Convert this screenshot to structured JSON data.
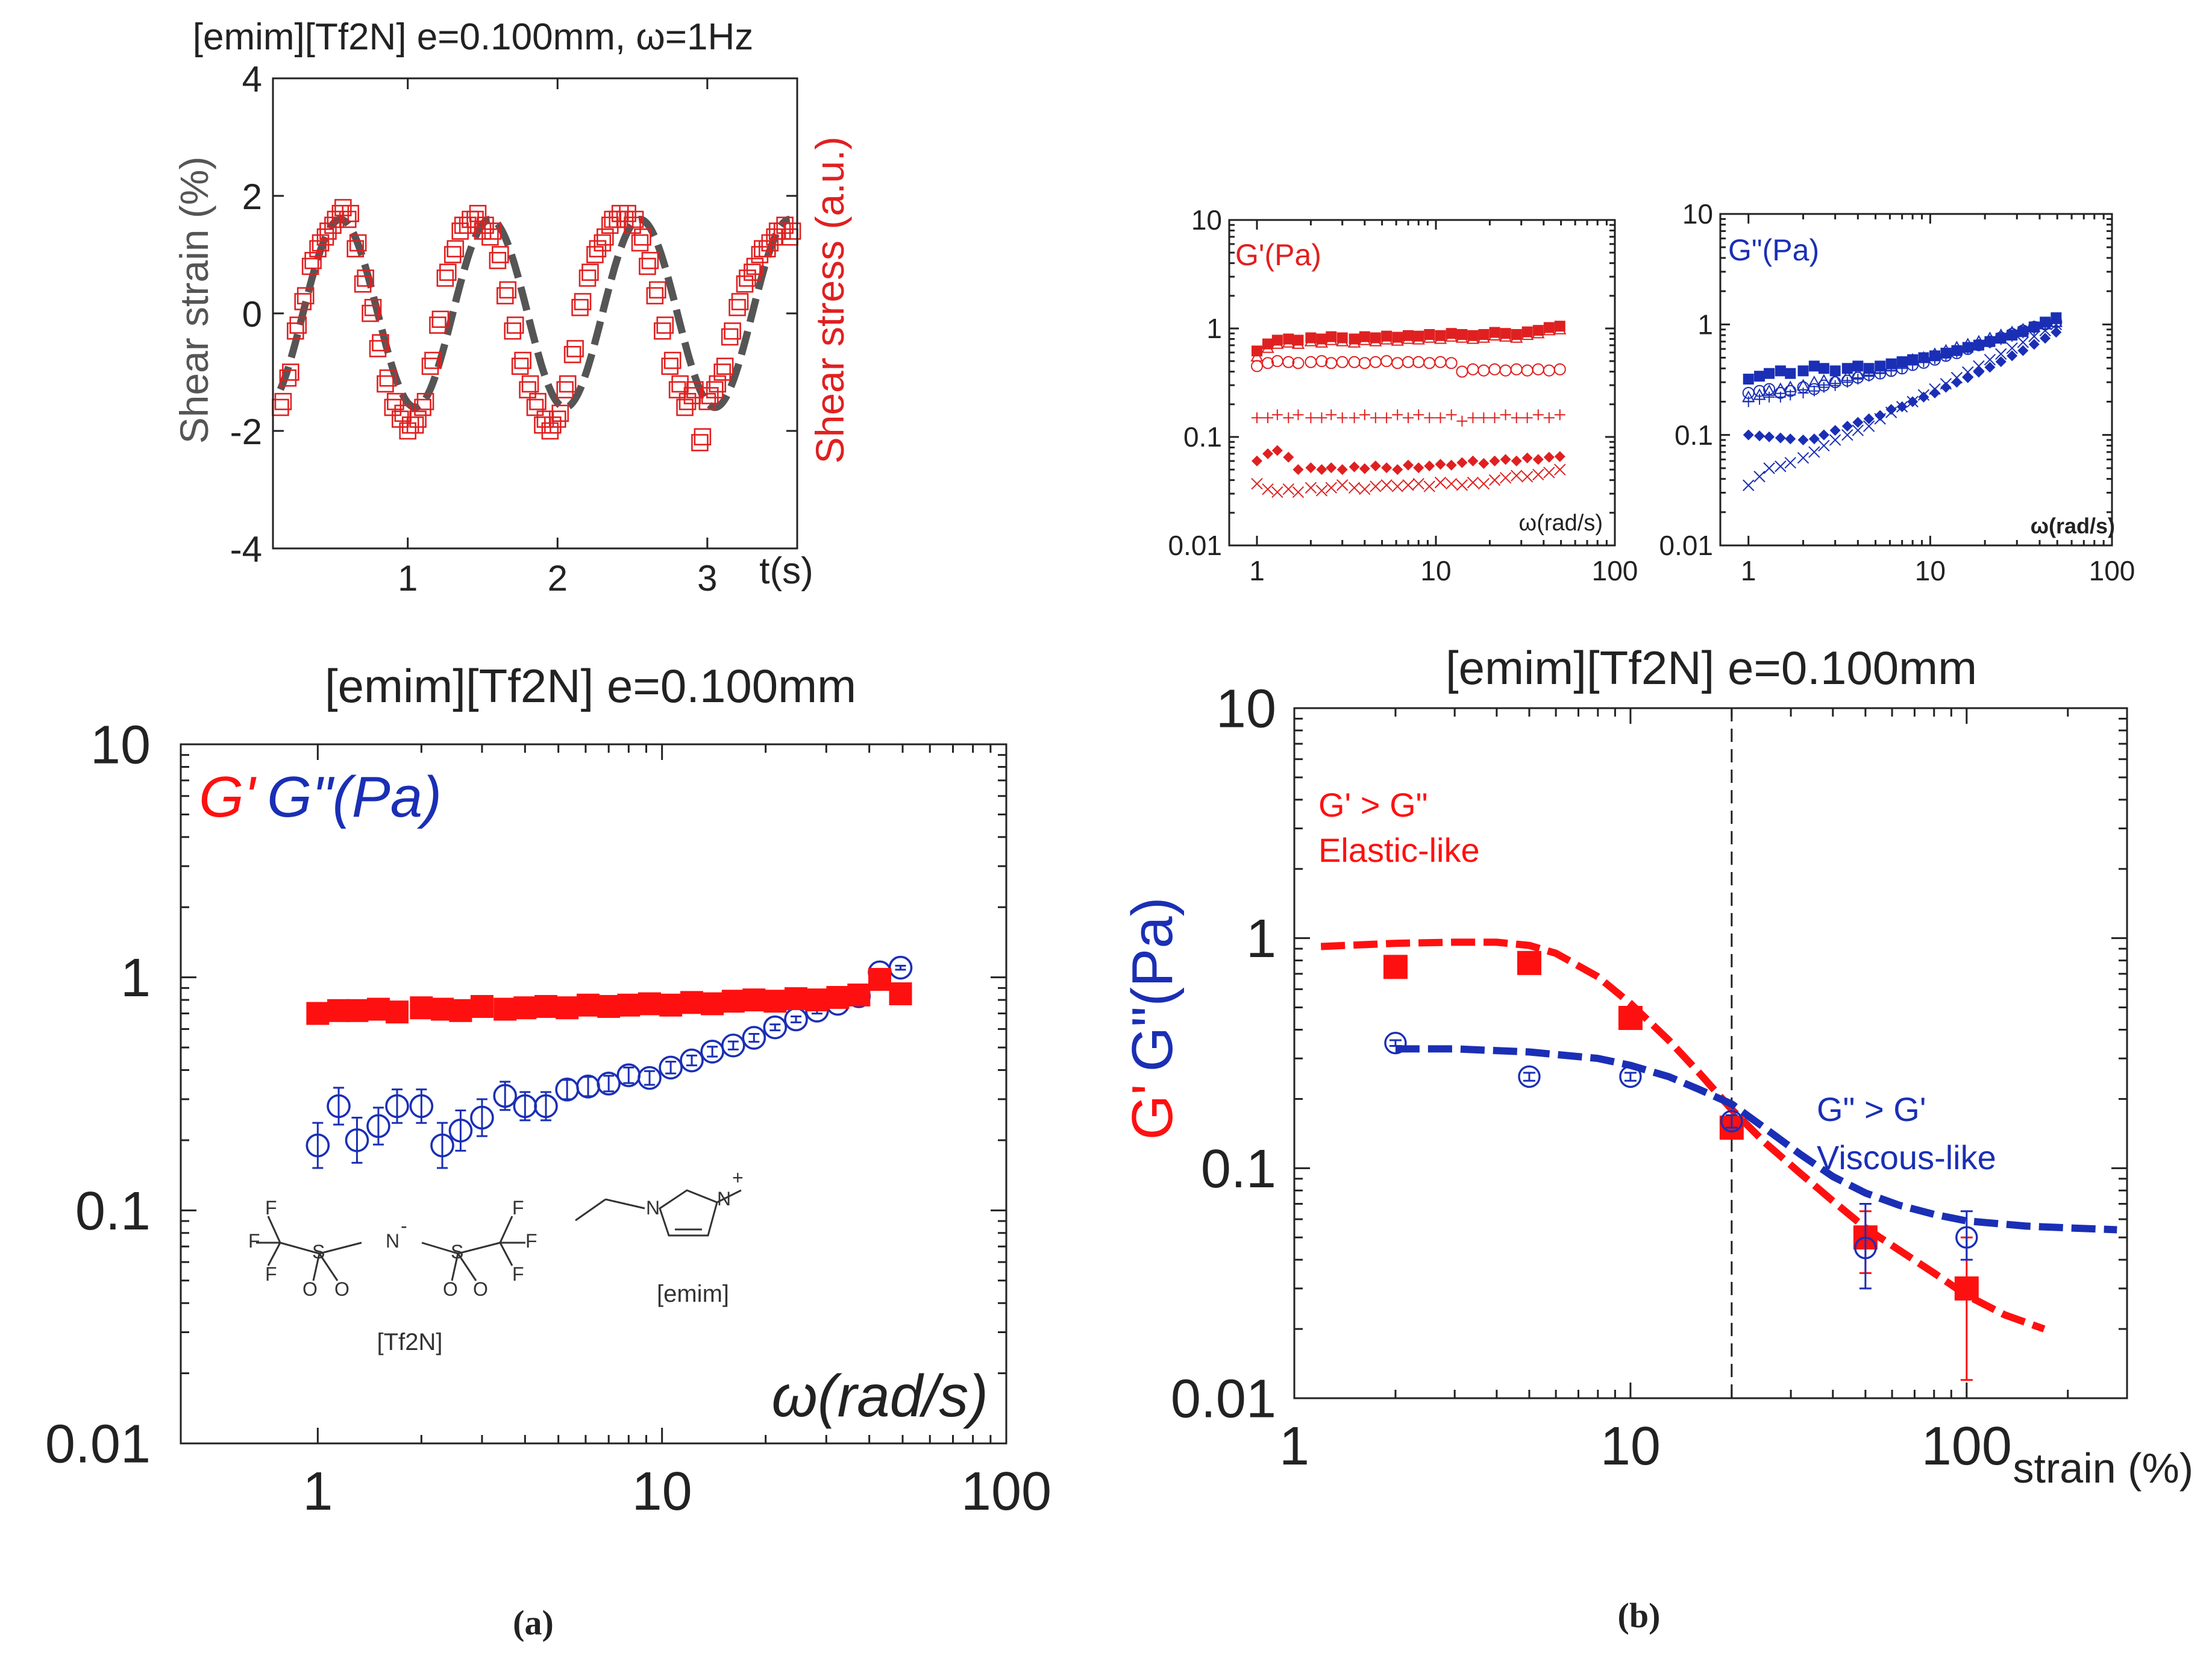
{
  "panel_labels": {
    "a": "(a)",
    "b": "(b)"
  },
  "chart_data": [
    {
      "id": "strain-stress-time",
      "type": "line",
      "title": "[emim][Tf2N] e=0.100mm, ω=1Hz",
      "xlabel": "t(s)",
      "ylabel": "Shear strain (%)",
      "ylabel_right": "Shear stress (a.u.)",
      "xlim": [
        0.1,
        3.6
      ],
      "ylim": [
        -4,
        4
      ],
      "xticks": [
        "1",
        "2",
        "3"
      ],
      "yticks": [
        "4",
        "2",
        "0",
        "-2",
        "-4"
      ],
      "colors": {
        "strain": "#555555",
        "stress": "#e02020"
      },
      "strain_fit": {
        "amplitude": 1.6,
        "period": 1.0,
        "phase_peak": 0.55
      },
      "stress": {
        "x": [
          0.15,
          0.2,
          0.25,
          0.3,
          0.35,
          0.4,
          0.45,
          0.5,
          0.55,
          0.6,
          0.65,
          0.7,
          0.75,
          0.8,
          0.85,
          0.9,
          0.95,
          1.0,
          1.05,
          1.1,
          1.15,
          1.2,
          1.25,
          1.3,
          1.35,
          1.4,
          1.45,
          1.5,
          1.55,
          1.6,
          1.65,
          1.7,
          1.75,
          1.8,
          1.85,
          1.9,
          1.95,
          2.0,
          2.05,
          2.1,
          2.15,
          2.2,
          2.25,
          2.3,
          2.35,
          2.4,
          2.45,
          2.5,
          2.55,
          2.6,
          2.65,
          2.7,
          2.75,
          2.8,
          2.85,
          2.9,
          2.95,
          3.0,
          3.05,
          3.1,
          3.15,
          3.2,
          3.25,
          3.3,
          3.35,
          3.4,
          3.45,
          3.5,
          3.55
        ],
        "y": [
          -1.6,
          -1.1,
          -0.3,
          0.2,
          0.8,
          1.1,
          1.3,
          1.5,
          1.7,
          1.6,
          1.1,
          0.5,
          0.0,
          -0.6,
          -1.2,
          -1.6,
          -1.8,
          -2.0,
          -1.9,
          -1.6,
          -0.9,
          -0.2,
          0.6,
          1.0,
          1.4,
          1.5,
          1.6,
          1.4,
          1.3,
          0.9,
          0.3,
          -0.3,
          -0.9,
          -1.3,
          -1.6,
          -1.9,
          -2.0,
          -1.8,
          -1.3,
          -0.7,
          0.1,
          0.6,
          1.0,
          1.2,
          1.5,
          1.6,
          1.6,
          1.5,
          1.2,
          0.8,
          0.3,
          -0.3,
          -0.9,
          -1.3,
          -1.6,
          -1.4,
          -2.2,
          -1.5,
          -1.3,
          -1.0,
          -0.4,
          0.1,
          0.5,
          0.7,
          1.0,
          1.1,
          1.3,
          1.4,
          1.3
        ]
      }
    },
    {
      "id": "gprime-insets",
      "type": "scatter",
      "title": "G'(Pa)",
      "xlabel": "ω(rad/s)",
      "xscale": "log",
      "yscale": "log",
      "xlim": [
        0.7,
        100
      ],
      "ylim": [
        0.01,
        10
      ],
      "xticks": [
        "1",
        "10",
        "100"
      ],
      "yticks": [
        "10",
        "1",
        "0.1",
        "0.01"
      ],
      "x": [
        1.0,
        1.15,
        1.3,
        1.5,
        1.7,
        2.0,
        2.3,
        2.6,
        3.0,
        3.5,
        4.0,
        4.6,
        5.3,
        6.1,
        7.0,
        8.0,
        9.2,
        10.6,
        12.2,
        14.0,
        16.1,
        18.5,
        21.3,
        24.5,
        28.2,
        32.4,
        37.3,
        42.9,
        49.3
      ],
      "series": [
        {
          "name": "filled-square",
          "marker": "filled-square",
          "color": "#e02020",
          "values": [
            0.62,
            0.72,
            0.78,
            0.8,
            0.78,
            0.82,
            0.8,
            0.84,
            0.82,
            0.8,
            0.84,
            0.82,
            0.85,
            0.83,
            0.86,
            0.85,
            0.88,
            0.86,
            0.9,
            0.88,
            0.86,
            0.88,
            0.92,
            0.9,
            0.88,
            0.93,
            0.96,
            1.02,
            1.05
          ]
        },
        {
          "name": "open-triangle",
          "marker": "open-triangle",
          "color": "#e02020",
          "values": [
            0.55,
            0.66,
            0.72,
            0.74,
            0.72,
            0.76,
            0.74,
            0.78,
            0.76,
            0.74,
            0.78,
            0.76,
            0.79,
            0.77,
            0.8,
            0.79,
            0.82,
            0.8,
            0.84,
            0.82,
            0.8,
            0.82,
            0.86,
            0.84,
            0.82,
            0.87,
            0.9,
            0.96,
            0.98
          ]
        },
        {
          "name": "open-circle",
          "marker": "open-circle",
          "color": "#e02020",
          "values": [
            0.45,
            0.48,
            0.5,
            0.49,
            0.48,
            0.49,
            0.5,
            0.48,
            0.49,
            0.49,
            0.48,
            0.49,
            0.5,
            0.48,
            0.49,
            0.49,
            0.48,
            0.49,
            0.48,
            0.4,
            0.42,
            0.41,
            0.42,
            0.41,
            0.42,
            0.41,
            0.42,
            0.41,
            0.42
          ]
        },
        {
          "name": "plus",
          "marker": "plus",
          "color": "#e02020",
          "values": [
            0.15,
            0.15,
            0.16,
            0.15,
            0.16,
            0.15,
            0.15,
            0.16,
            0.15,
            0.15,
            0.16,
            0.15,
            0.15,
            0.16,
            0.15,
            0.16,
            0.15,
            0.15,
            0.16,
            0.14,
            0.15,
            0.15,
            0.15,
            0.16,
            0.15,
            0.15,
            0.16,
            0.15,
            0.16
          ]
        },
        {
          "name": "filled-diamond",
          "marker": "filled-diamond",
          "color": "#e02020",
          "values": [
            0.06,
            0.07,
            0.075,
            0.065,
            0.05,
            0.052,
            0.05,
            0.052,
            0.05,
            0.053,
            0.051,
            0.054,
            0.052,
            0.05,
            0.055,
            0.052,
            0.054,
            0.056,
            0.055,
            0.058,
            0.06,
            0.057,
            0.06,
            0.062,
            0.06,
            0.064,
            0.062,
            0.065,
            0.066
          ]
        },
        {
          "name": "cross",
          "marker": "cross",
          "color": "#e02020",
          "values": [
            0.037,
            0.033,
            0.031,
            0.033,
            0.031,
            0.034,
            0.032,
            0.034,
            0.036,
            0.034,
            0.033,
            0.035,
            0.036,
            0.035,
            0.036,
            0.037,
            0.035,
            0.038,
            0.037,
            0.036,
            0.038,
            0.037,
            0.04,
            0.042,
            0.044,
            0.043,
            0.045,
            0.047,
            0.05
          ]
        }
      ]
    },
    {
      "id": "gdoubleprime-insets",
      "type": "scatter",
      "title": "G\"(Pa)",
      "xlabel": "ω(rad/s)",
      "xscale": "log",
      "yscale": "log",
      "xlim": [
        0.7,
        100
      ],
      "ylim": [
        0.01,
        10
      ],
      "xticks": [
        "1",
        "10",
        "100"
      ],
      "yticks": [
        "10",
        "1",
        "0.1",
        "0.01"
      ],
      "x": [
        1.0,
        1.15,
        1.3,
        1.5,
        1.7,
        2.0,
        2.3,
        2.6,
        3.0,
        3.5,
        4.0,
        4.6,
        5.3,
        6.1,
        7.0,
        8.0,
        9.2,
        10.6,
        12.2,
        14.0,
        16.1,
        18.5,
        21.3,
        24.5,
        28.2,
        32.4,
        37.3,
        42.9,
        49.3
      ],
      "series": [
        {
          "name": "filled-square",
          "marker": "filled-square",
          "color": "#1a2fb5",
          "values": [
            0.32,
            0.34,
            0.36,
            0.38,
            0.36,
            0.38,
            0.42,
            0.4,
            0.38,
            0.4,
            0.42,
            0.4,
            0.42,
            0.44,
            0.46,
            0.48,
            0.5,
            0.52,
            0.55,
            0.58,
            0.62,
            0.65,
            0.7,
            0.75,
            0.8,
            0.86,
            0.95,
            1.05,
            1.15
          ]
        },
        {
          "name": "open-circle",
          "marker": "open-circle",
          "color": "#1a2fb5",
          "values": [
            0.24,
            0.25,
            0.26,
            0.24,
            0.25,
            0.27,
            0.26,
            0.28,
            0.3,
            0.31,
            0.33,
            0.35,
            0.36,
            0.38,
            0.4,
            0.43,
            0.45,
            0.48,
            0.52,
            0.55,
            0.6,
            0.65,
            0.7,
            0.76,
            0.82,
            0.88,
            0.95,
            1.0,
            1.05
          ]
        },
        {
          "name": "open-triangle",
          "marker": "open-triangle",
          "color": "#1a2fb5",
          "values": [
            0.22,
            0.23,
            0.25,
            0.26,
            0.27,
            0.28,
            0.3,
            0.31,
            0.32,
            0.34,
            0.36,
            0.38,
            0.4,
            0.42,
            0.45,
            0.48,
            0.5,
            0.54,
            0.58,
            0.62,
            0.66,
            0.7,
            0.75,
            0.8,
            0.85,
            0.9,
            0.95,
            1.0,
            1.05
          ]
        },
        {
          "name": "plus",
          "marker": "plus",
          "color": "#1a2fb5",
          "values": [
            0.2,
            0.21,
            0.22,
            0.22,
            0.23,
            0.24,
            0.25,
            0.27,
            0.28,
            0.3,
            0.32,
            0.34,
            0.36,
            0.38,
            0.4,
            0.43,
            0.46,
            0.49,
            0.52,
            0.56,
            0.6,
            0.64,
            0.68,
            0.73,
            0.78,
            0.84,
            0.9,
            0.96,
            1.02
          ]
        },
        {
          "name": "filled-diamond",
          "marker": "filled-diamond",
          "color": "#1a2fb5",
          "values": [
            0.1,
            0.098,
            0.096,
            0.094,
            0.092,
            0.09,
            0.092,
            0.1,
            0.11,
            0.12,
            0.13,
            0.14,
            0.15,
            0.17,
            0.18,
            0.2,
            0.22,
            0.24,
            0.27,
            0.3,
            0.33,
            0.37,
            0.41,
            0.46,
            0.52,
            0.58,
            0.66,
            0.75,
            0.85
          ]
        },
        {
          "name": "cross",
          "marker": "cross",
          "color": "#1a2fb5",
          "values": [
            0.035,
            0.042,
            0.05,
            0.052,
            0.056,
            0.062,
            0.07,
            0.08,
            0.09,
            0.1,
            0.11,
            0.12,
            0.14,
            0.16,
            0.18,
            0.2,
            0.23,
            0.26,
            0.29,
            0.33,
            0.37,
            0.42,
            0.48,
            0.54,
            0.61,
            0.69,
            0.78,
            0.88,
            1.0
          ]
        }
      ]
    },
    {
      "id": "frequency-sweep-a",
      "type": "scatter",
      "title": "[emim][Tf2N] e=0.100mm",
      "xlabel": "ω(rad/s)",
      "legend_label": {
        "g1": "G'",
        "g2": "G\"(Pa)"
      },
      "xscale": "log",
      "yscale": "log",
      "xlim": [
        0.4,
        100
      ],
      "ylim": [
        0.01,
        10
      ],
      "xticks": [
        "1",
        "10",
        "100"
      ],
      "yticks": [
        "10",
        "1",
        "0.1",
        "0.01"
      ],
      "molecules": {
        "anion": "[Tf2N]",
        "cation": "[emim]"
      },
      "x": [
        1.0,
        1.15,
        1.3,
        1.5,
        1.7,
        2.0,
        2.3,
        2.6,
        3.0,
        3.5,
        4.0,
        4.6,
        5.3,
        6.1,
        7.0,
        8.0,
        9.2,
        10.6,
        12.2,
        14.0,
        16.1,
        18.5,
        21.3,
        24.5,
        28.2,
        32.4,
        37.3,
        42.9,
        49.3
      ],
      "series": [
        {
          "name": "G'",
          "marker": "filled-square",
          "color": "#ff1010",
          "values": [
            0.7,
            0.72,
            0.72,
            0.73,
            0.71,
            0.74,
            0.73,
            0.72,
            0.75,
            0.73,
            0.74,
            0.75,
            0.74,
            0.76,
            0.75,
            0.76,
            0.77,
            0.76,
            0.78,
            0.77,
            0.79,
            0.8,
            0.79,
            0.81,
            0.8,
            0.82,
            0.84,
            0.98,
            0.85
          ]
        },
        {
          "name": "G\"",
          "marker": "open-circle",
          "color": "#1a2fb5",
          "values": [
            0.19,
            0.28,
            0.2,
            0.23,
            0.28,
            0.28,
            0.19,
            0.22,
            0.25,
            0.31,
            0.28,
            0.28,
            0.33,
            0.34,
            0.35,
            0.38,
            0.37,
            0.41,
            0.44,
            0.48,
            0.51,
            0.55,
            0.61,
            0.66,
            0.72,
            0.77,
            0.83,
            1.05,
            1.1
          ],
          "error_ratio": [
            1.25,
            1.2,
            1.25,
            1.2,
            1.18,
            1.18,
            1.25,
            1.22,
            1.2,
            1.15,
            1.15,
            1.15,
            1.1,
            1.1,
            1.08,
            1.08,
            1.07,
            1.06,
            1.05,
            1.05,
            1.04,
            1.04,
            1.03,
            1.03,
            1.03,
            1.02,
            1.02,
            1.02,
            1.02
          ]
        }
      ]
    },
    {
      "id": "strain-sweep-b",
      "type": "scatter",
      "title": "[emim][Tf2N] e=0.100mm",
      "xlabel": "strain (%)",
      "ylabel_g1": "G'",
      "ylabel_g2": "G\"(Pa)",
      "xscale": "log",
      "yscale": "log",
      "xlim": [
        1,
        300
      ],
      "ylim": [
        0.01,
        10
      ],
      "xticks": [
        "1",
        "10",
        "100"
      ],
      "yticks": [
        "10",
        "1",
        "0.1",
        "0.01"
      ],
      "vline": 20,
      "annotations": {
        "elastic_line1": "G' > G\"",
        "elastic_line2": "Elastic-like",
        "viscous_line1": "G\" > G'",
        "viscous_line2": "Viscous-like"
      },
      "series": [
        {
          "name": "G'",
          "marker": "filled-square",
          "color": "#ff1010",
          "x": [
            2,
            5,
            10,
            20,
            50,
            100
          ],
          "values": [
            0.75,
            0.78,
            0.45,
            0.15,
            0.05,
            0.03
          ],
          "error_low": [
            0.75,
            0.78,
            0.45,
            0.15,
            0.035,
            0.012
          ],
          "error_high": [
            0.75,
            0.78,
            0.45,
            0.15,
            0.065,
            0.05
          ]
        },
        {
          "name": "G\"",
          "marker": "open-circle",
          "color": "#1a2fb5",
          "x": [
            2,
            5,
            10,
            20,
            50,
            100
          ],
          "values": [
            0.35,
            0.25,
            0.25,
            0.16,
            0.045,
            0.05
          ],
          "error_low": [
            0.34,
            0.24,
            0.24,
            0.15,
            0.03,
            0.04
          ],
          "error_high": [
            0.36,
            0.26,
            0.26,
            0.17,
            0.07,
            0.065
          ]
        },
        {
          "name": "G' fit",
          "type": "line",
          "color": "#ff1010",
          "x": [
            1.2,
            2,
            3,
            4,
            5,
            6,
            8,
            10,
            13,
            16,
            20,
            25,
            32,
            40,
            50,
            63,
            80,
            100,
            130,
            170
          ],
          "values": [
            0.92,
            0.95,
            0.96,
            0.96,
            0.93,
            0.86,
            0.68,
            0.52,
            0.36,
            0.26,
            0.18,
            0.13,
            0.095,
            0.072,
            0.055,
            0.044,
            0.035,
            0.028,
            0.023,
            0.02
          ]
        },
        {
          "name": "G\" fit",
          "type": "line",
          "color": "#1a2fb5",
          "x": [
            2,
            3,
            5,
            8,
            10,
            13,
            16,
            20,
            25,
            32,
            40,
            50,
            63,
            80,
            100,
            150,
            200,
            280
          ],
          "values": [
            0.33,
            0.33,
            0.32,
            0.3,
            0.28,
            0.25,
            0.22,
            0.19,
            0.15,
            0.115,
            0.092,
            0.078,
            0.069,
            0.063,
            0.059,
            0.056,
            0.055,
            0.054
          ]
        }
      ]
    }
  ]
}
